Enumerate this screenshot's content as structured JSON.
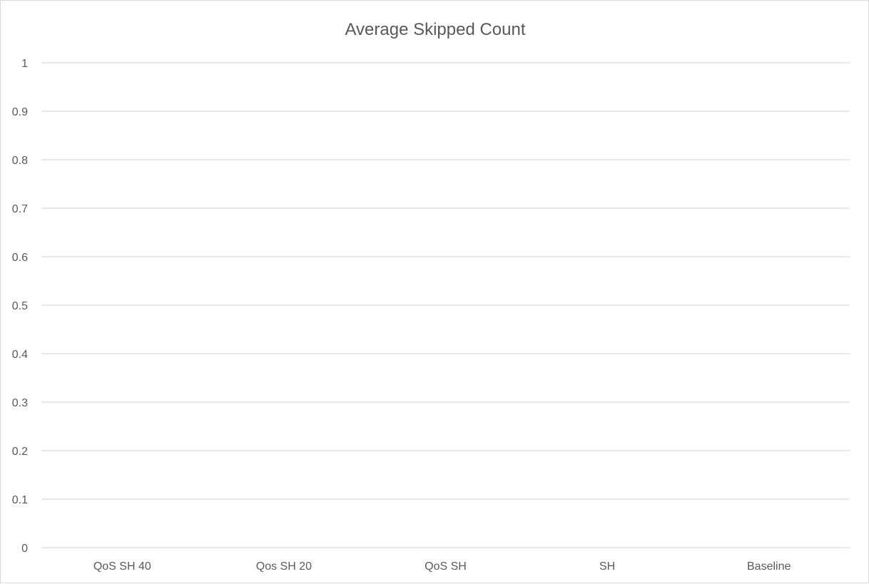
{
  "chart_data": {
    "type": "bar",
    "title": "Average Skipped Count",
    "xlabel": "",
    "ylabel": "",
    "categories": [
      "QoS SH 40",
      "Qos SH 20",
      "QoS SH",
      "SH",
      "Baseline"
    ],
    "series": [
      {
        "values": [
          0,
          0,
          0,
          0,
          0
        ]
      }
    ],
    "ylim": [
      0,
      1
    ],
    "y_ticks": [
      "0",
      "0.1",
      "0.2",
      "0.3",
      "0.4",
      "0.5",
      "0.6",
      "0.7",
      "0.8",
      "0.9",
      "1"
    ],
    "grid": true,
    "legend": "none",
    "colors": {
      "gridline": "#d9d9d9",
      "text": "#595959",
      "bar": "#4472c4"
    }
  }
}
